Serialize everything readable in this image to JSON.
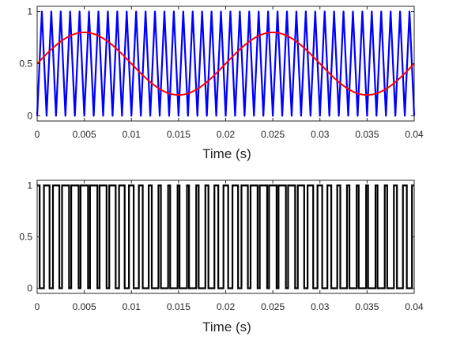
{
  "chart_data": [
    {
      "type": "line",
      "xlabel": "Time (s)",
      "ylabel": "",
      "xlim": [
        0,
        0.04
      ],
      "ylim": [
        -0.05,
        1.05
      ],
      "x_ticks": [
        "0",
        "0.005",
        "0.01",
        "0.015",
        "0.02",
        "0.025",
        "0.03",
        "0.035",
        "0.04"
      ],
      "y_ticks": [
        "0",
        "0.5",
        "1"
      ],
      "grid": false,
      "series": [
        {
          "type": "triangle_carrier",
          "color": "#0000ff",
          "frequency_hz": 1000,
          "min": 0,
          "max": 1,
          "x_start": 0,
          "x_end": 0.04
        },
        {
          "type": "sine_reference",
          "color": "#ff0000",
          "frequency_hz": 50,
          "offset": 0.5,
          "amplitude": 0.3,
          "x_start": 0,
          "x_end": 0.04
        }
      ]
    },
    {
      "type": "line",
      "xlabel": "Time (s)",
      "ylabel": "",
      "xlim": [
        0,
        0.04
      ],
      "ylim": [
        -0.05,
        1.05
      ],
      "x_ticks": [
        "0",
        "0.005",
        "0.01",
        "0.015",
        "0.02",
        "0.025",
        "0.03",
        "0.035",
        "0.04"
      ],
      "y_ticks": [
        "0",
        "0.5",
        "1"
      ],
      "grid": false,
      "series": [
        {
          "type": "pwm_output",
          "color": "#000000",
          "levels": [
            0,
            1
          ],
          "comparison": "sine_reference > triangle_carrier",
          "x_start": 0,
          "x_end": 0.04
        }
      ]
    }
  ],
  "colors": {
    "carrier": "#0000ff",
    "reference": "#ff0000",
    "pwm": "#000000",
    "axes": "#262626"
  }
}
